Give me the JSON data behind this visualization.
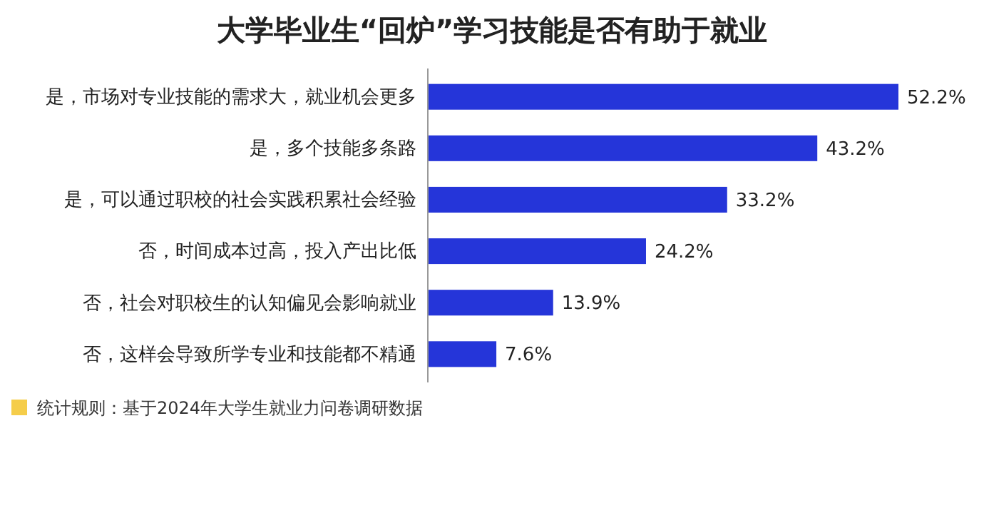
{
  "chart_data": {
    "type": "bar",
    "orientation": "horizontal",
    "title": "大学毕业生“回炉”学习技能是否有助于就业",
    "categories": [
      "是，市场对专业技能的需求大，就业机会更多",
      "是，多个技能多条路",
      "是，可以通过职校的社会实践积累社会经验",
      "否，时间成本过高，投入产出比低",
      "否，社会对职校生的认知偏见会影响就业",
      "否，这样会导致所学专业和技能都不精通"
    ],
    "values": [
      52.2,
      43.2,
      33.2,
      24.2,
      13.9,
      7.6
    ],
    "value_labels": [
      "52.2%",
      "43.2%",
      "33.2%",
      "24.2%",
      "13.9%",
      "7.6%"
    ],
    "color": "#2535d9",
    "annotations": [
      "统计规则：基于2024年大学生就业力问卷调研数据"
    ]
  }
}
